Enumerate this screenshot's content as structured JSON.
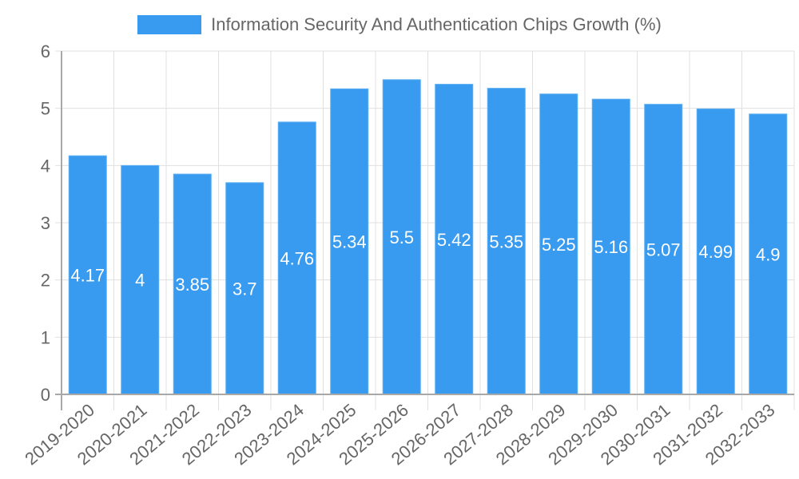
{
  "legend": {
    "label": "Information Security And Authentication Chips Growth (%)",
    "color": "#389bef"
  },
  "colors": {
    "bar": "#389bef",
    "bar_border": "#5aaef2",
    "grid": "#e0e0e0",
    "axis": "#a8a8a8",
    "tick_text": "#666666",
    "value_text": "#ffffff"
  },
  "chart_data": {
    "type": "bar",
    "title": "",
    "categories": [
      "2019-2020",
      "2020-2021",
      "2021-2022",
      "2022-2023",
      "2023-2024",
      "2024-2025",
      "2025-2026",
      "2026-2027",
      "2027-2028",
      "2028-2029",
      "2029-2030",
      "2030-2031",
      "2031-2032",
      "2032-2033"
    ],
    "series": [
      {
        "name": "Information Security And Authentication Chips Growth (%)",
        "values": [
          4.17,
          4,
          3.85,
          3.7,
          4.76,
          5.34,
          5.5,
          5.42,
          5.35,
          5.25,
          5.16,
          5.07,
          4.99,
          4.9
        ]
      }
    ],
    "value_labels": [
      "4.17",
      "4",
      "3.85",
      "3.7",
      "4.76",
      "5.34",
      "5.5",
      "5.42",
      "5.35",
      "5.25",
      "5.16",
      "5.07",
      "4.99",
      "4.9"
    ],
    "xlabel": "",
    "ylabel": "",
    "ylim": [
      0,
      6
    ],
    "yticks": [
      "0",
      "1",
      "2",
      "3",
      "4",
      "5",
      "6"
    ],
    "grid": true,
    "legend_position": "top"
  }
}
